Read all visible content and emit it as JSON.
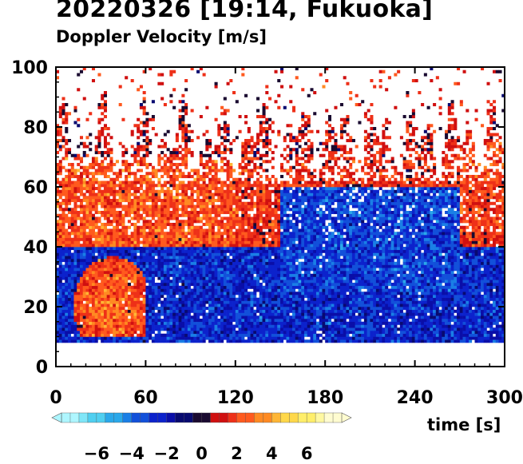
{
  "chart_data": {
    "type": "heatmap",
    "title": "20220326 [19:14, Fukuoka]",
    "subtitle": "Doppler Velocity [m/s]",
    "xlabel": "time [s]",
    "ylabel": "",
    "xlim": [
      0,
      300
    ],
    "ylim": [
      0,
      100
    ],
    "x_ticks": [
      0,
      60,
      120,
      180,
      240,
      300
    ],
    "y_ticks": [
      0,
      20,
      40,
      60,
      80,
      100
    ],
    "data_range": {
      "y_min": 8,
      "y_max": 100,
      "description_of_pattern": "Positive velocities dominate above ~45 and at 5–60 s low heights; negative velocities dominate 20–50 from ~60 s onward"
    },
    "colorbar": {
      "min": -8,
      "max": 8,
      "tick_values": [
        -6,
        -4,
        -2,
        0,
        2,
        4,
        6
      ],
      "tick_labels": [
        "−6",
        "−4",
        "−2",
        "0",
        "2",
        "4",
        "6"
      ],
      "colors_negative_to_positive": [
        "#aef6ff",
        "#7fe6f8",
        "#4fcff0",
        "#2aa8ea",
        "#1a7fe6",
        "#1250da",
        "#0c22cc",
        "#0a0ea8",
        "#080a70",
        "#1a0a30",
        "#d01010",
        "#ee3018",
        "#ff5a1e",
        "#ff8a22",
        "#ffb636",
        "#ffd84a",
        "#ffee6a",
        "#fff8a0",
        "#fffcd0"
      ]
    },
    "regions": [
      {
        "t0": 0,
        "t1": 300,
        "h0": 8,
        "h1": 40,
        "mean_velocity": -2.5,
        "note": "dominant negative (blue) band"
      },
      {
        "t0": 10,
        "t1": 60,
        "h0": 10,
        "h1": 40,
        "mean_velocity": 3,
        "note": "positive (orange) blob near 40 s, 15–25"
      },
      {
        "t0": 0,
        "t1": 300,
        "h0": 40,
        "h1": 70,
        "mean_velocity": 1.5,
        "note": "mixed, mostly positive"
      },
      {
        "t0": 150,
        "t1": 270,
        "h0": 25,
        "h1": 60,
        "mean_velocity": -3,
        "note": "strong negative (blue) core"
      },
      {
        "t0": 0,
        "t1": 300,
        "h0": 70,
        "h1": 100,
        "mean_velocity": 1,
        "note": "sparse scattered echoes"
      }
    ]
  }
}
